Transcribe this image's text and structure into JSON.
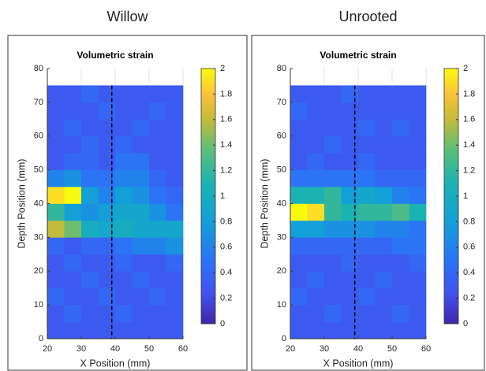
{
  "chart_data": [
    {
      "type": "heatmap",
      "panel_label": "Willow",
      "title": "Volumetric strain",
      "xlabel": "X Position (mm)",
      "ylabel": "Depth Position (mm)",
      "xlim": [
        20,
        60
      ],
      "ylim": [
        0,
        80
      ],
      "xticks": [
        20,
        30,
        40,
        50,
        60
      ],
      "yticks": [
        0,
        10,
        20,
        30,
        40,
        50,
        60,
        70,
        80
      ],
      "xgrid": true,
      "colormap": "parula",
      "clim": [
        0,
        2
      ],
      "cticks": [
        0,
        0.2,
        0.4,
        0.6,
        0.8,
        1,
        1.2,
        1.4,
        1.6,
        1.8,
        2
      ],
      "dashed_line_x": 39,
      "x": [
        22.5,
        27.5,
        32.5,
        37.5,
        42.5,
        47.5,
        52.5,
        57.5
      ],
      "y": [
        2.5,
        7.5,
        12.5,
        17.5,
        22.5,
        27.5,
        32.5,
        37.5,
        42.5,
        47.5,
        52.5,
        57.5,
        62.5,
        67.5,
        72.5
      ],
      "z": [
        [
          0.3,
          0.3,
          0.3,
          0.3,
          0.3,
          0.3,
          0.3,
          0.3
        ],
        [
          0.3,
          0.4,
          0.3,
          0.3,
          0.4,
          0.3,
          0.3,
          0.3
        ],
        [
          0.4,
          0.3,
          0.3,
          0.4,
          0.3,
          0.3,
          0.4,
          0.3
        ],
        [
          0.3,
          0.3,
          0.4,
          0.3,
          0.3,
          0.4,
          0.3,
          0.3
        ],
        [
          0.3,
          0.4,
          0.3,
          0.3,
          0.4,
          0.3,
          0.3,
          0.4
        ],
        [
          0.4,
          0.3,
          0.4,
          0.4,
          0.5,
          0.6,
          0.6,
          0.7
        ],
        [
          1.6,
          1.4,
          1.0,
          0.9,
          1.0,
          0.9,
          0.9,
          0.9
        ],
        [
          1.2,
          0.8,
          0.7,
          0.8,
          0.9,
          0.9,
          0.7,
          0.5
        ],
        [
          1.9,
          2.0,
          0.8,
          0.6,
          0.8,
          0.7,
          0.5,
          0.4
        ],
        [
          0.6,
          0.7,
          0.5,
          0.5,
          0.6,
          0.6,
          0.4,
          0.3
        ],
        [
          0.3,
          0.4,
          0.4,
          0.3,
          0.5,
          0.5,
          0.3,
          0.3
        ],
        [
          0.3,
          0.3,
          0.4,
          0.3,
          0.4,
          0.3,
          0.3,
          0.3
        ],
        [
          0.3,
          0.4,
          0.3,
          0.3,
          0.3,
          0.4,
          0.3,
          0.3
        ],
        [
          0.3,
          0.3,
          0.3,
          0.4,
          0.3,
          0.3,
          0.4,
          0.3
        ],
        [
          0.3,
          0.3,
          0.4,
          0.3,
          0.3,
          0.3,
          0.3,
          0.3
        ]
      ]
    },
    {
      "type": "heatmap",
      "panel_label": "Unrooted",
      "title": "Volumetric strain",
      "xlabel": "X Position (mm)",
      "ylabel": "Depth Position (mm)",
      "xlim": [
        20,
        60
      ],
      "ylim": [
        0,
        80
      ],
      "xticks": [
        20,
        30,
        40,
        50,
        60
      ],
      "yticks": [
        0,
        10,
        20,
        30,
        40,
        50,
        60,
        70,
        80
      ],
      "xgrid": true,
      "colormap": "parula",
      "clim": [
        0,
        2
      ],
      "cticks": [
        0,
        0.2,
        0.4,
        0.6,
        0.8,
        1,
        1.2,
        1.4,
        1.6,
        1.8,
        2
      ],
      "dashed_line_x": 39,
      "x": [
        22.5,
        27.5,
        32.5,
        37.5,
        42.5,
        47.5,
        52.5,
        57.5
      ],
      "y": [
        2.5,
        7.5,
        12.5,
        17.5,
        22.5,
        27.5,
        32.5,
        37.5,
        42.5,
        47.5,
        52.5,
        57.5,
        62.5,
        67.5,
        72.5
      ],
      "z": [
        [
          0.3,
          0.3,
          0.3,
          0.3,
          0.3,
          0.3,
          0.3,
          0.3
        ],
        [
          0.3,
          0.3,
          0.4,
          0.3,
          0.3,
          0.3,
          0.4,
          0.3
        ],
        [
          0.4,
          0.3,
          0.3,
          0.3,
          0.4,
          0.3,
          0.3,
          0.3
        ],
        [
          0.3,
          0.4,
          0.3,
          0.3,
          0.3,
          0.4,
          0.3,
          0.3
        ],
        [
          0.3,
          0.3,
          0.3,
          0.4,
          0.3,
          0.3,
          0.3,
          0.4
        ],
        [
          0.4,
          0.4,
          0.4,
          0.4,
          0.4,
          0.4,
          0.5,
          0.5
        ],
        [
          0.8,
          0.8,
          0.7,
          0.7,
          0.7,
          0.6,
          0.6,
          0.5
        ],
        [
          2.0,
          1.9,
          1.2,
          1.1,
          1.2,
          1.2,
          1.3,
          1.1
        ],
        [
          1.1,
          1.1,
          1.2,
          0.8,
          0.9,
          0.8,
          0.6,
          0.5
        ],
        [
          0.5,
          0.5,
          0.5,
          0.5,
          0.5,
          0.4,
          0.4,
          0.4
        ],
        [
          0.3,
          0.4,
          0.3,
          0.3,
          0.4,
          0.3,
          0.3,
          0.3
        ],
        [
          0.3,
          0.3,
          0.4,
          0.3,
          0.3,
          0.3,
          0.3,
          0.3
        ],
        [
          0.3,
          0.3,
          0.3,
          0.3,
          0.4,
          0.3,
          0.4,
          0.3
        ],
        [
          0.4,
          0.3,
          0.3,
          0.3,
          0.3,
          0.3,
          0.3,
          0.3
        ],
        [
          0.3,
          0.3,
          0.3,
          0.4,
          0.3,
          0.3,
          0.3,
          0.3
        ]
      ]
    }
  ]
}
